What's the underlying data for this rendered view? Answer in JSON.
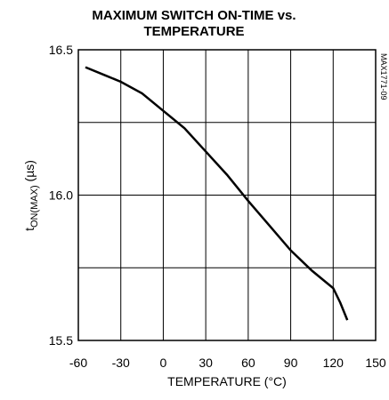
{
  "chart_data": {
    "type": "line",
    "title": [
      "MAXIMUM SWITCH ON-TIME vs.",
      "TEMPERATURE"
    ],
    "xlabel": "TEMPERATURE (°C)",
    "ylabel": {
      "main": "t",
      "sub": "ON(MAX)",
      "unit": " (µs)"
    },
    "annotation": "MAX1771-09",
    "x": [
      -55,
      -40,
      -30,
      -15,
      0,
      15,
      30,
      45,
      60,
      75,
      90,
      105,
      115,
      120,
      125,
      130
    ],
    "series": [
      {
        "name": "tON(MAX)",
        "color": "#000000",
        "values": [
          16.44,
          16.41,
          16.39,
          16.35,
          16.29,
          16.23,
          16.15,
          16.07,
          15.98,
          15.895,
          15.81,
          15.74,
          15.7,
          15.68,
          15.63,
          15.57
        ]
      }
    ],
    "xlim": [
      -60,
      150
    ],
    "xticks": [
      -60,
      -30,
      0,
      30,
      60,
      90,
      120,
      150
    ],
    "ylim": [
      15.5,
      16.5
    ],
    "yticks": [
      15.5,
      {
        "value": 16,
        "label": "16.0"
      },
      16.5
    ],
    "ygrid": [
      15.75,
      16.25
    ],
    "grid": true
  }
}
